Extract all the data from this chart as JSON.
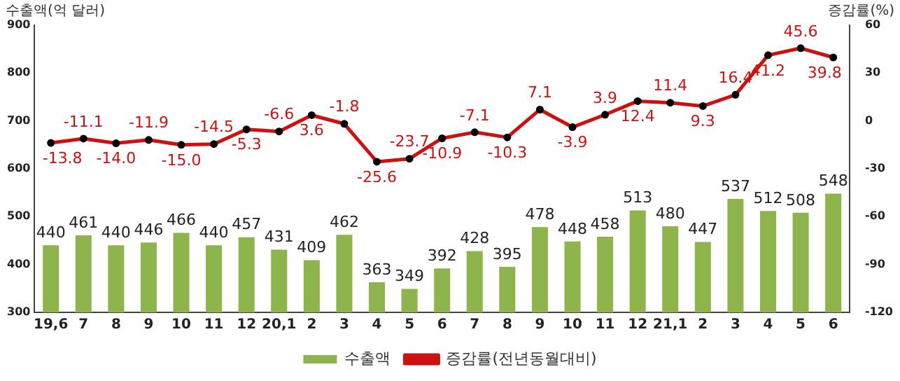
{
  "chart_data": {
    "type": "bar",
    "ylabel": "수출액(억 달러)",
    "y2label": "증감률(%)",
    "categories": [
      "19,6",
      "7",
      "8",
      "9",
      "10",
      "11",
      "12",
      "20,1",
      "2",
      "3",
      "4",
      "5",
      "6",
      "7",
      "8",
      "9",
      "10",
      "11",
      "12",
      "21,1",
      "2",
      "3",
      "4",
      "5",
      "6"
    ],
    "series": [
      {
        "name": "수출액",
        "color": "#8db54b",
        "values": [
          440,
          461,
          440,
          446,
          466,
          440,
          457,
          431,
          409,
          462,
          363,
          349,
          392,
          428,
          395,
          478,
          448,
          458,
          513,
          480,
          447,
          537,
          512,
          508,
          548
        ],
        "value_labels": [
          "440",
          "461",
          "440",
          "446",
          "466",
          "440",
          "457",
          "431",
          "409",
          "462",
          "363",
          "349",
          "392",
          "428",
          "395",
          "478",
          "448",
          "458",
          "513",
          "480",
          "447",
          "537",
          "512",
          "508",
          "548"
        ]
      },
      {
        "name": "증감률(전년동월대비)",
        "type": "line",
        "axis": "y2",
        "color": "#cc1111",
        "marker": "circle",
        "values": [
          -13.8,
          -11.1,
          -14.0,
          -11.9,
          -15.0,
          -14.5,
          -5.3,
          -6.6,
          3.6,
          -1.8,
          -25.6,
          -23.7,
          -10.9,
          -7.1,
          -10.3,
          7.1,
          -3.9,
          3.9,
          12.4,
          11.4,
          9.3,
          16.4,
          41.2,
          45.6,
          39.8
        ],
        "value_labels": [
          "-13.8",
          "-11.1",
          "-14.0",
          "-11.9",
          "-15.0",
          "-14.5",
          "-5.3",
          "-6.6",
          "3.6",
          "-1.8",
          "-25.6",
          "-23.7",
          "-10.9",
          "-7.1",
          "-10.3",
          "7.1",
          "-3.9",
          "3.9",
          "12.4",
          "11.4",
          "9.3",
          "16.4",
          "41.2",
          "45.6",
          "39.8"
        ]
      }
    ],
    "ylim": [
      300,
      900
    ],
    "yticks": [
      300,
      400,
      500,
      600,
      700,
      800,
      900
    ],
    "y2lim": [
      -120,
      60
    ],
    "y2ticks": [
      -120,
      -90,
      -60,
      -30,
      0,
      30,
      60
    ],
    "grid": false,
    "legend": "bottom"
  }
}
